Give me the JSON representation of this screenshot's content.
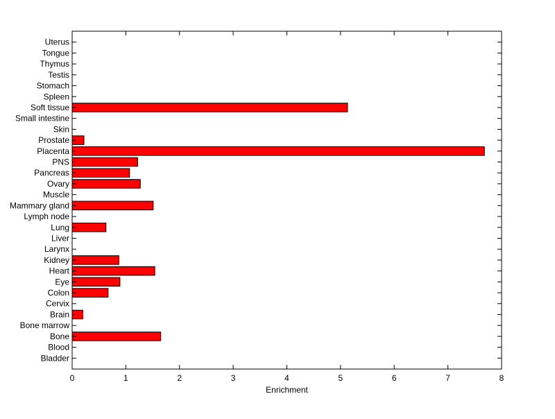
{
  "chart_data": {
    "type": "bar",
    "orientation": "horizontal",
    "title": "",
    "xlabel": "Enrichment",
    "ylabel": "",
    "xlim": [
      0,
      8
    ],
    "xticks": [
      0,
      1,
      2,
      3,
      4,
      5,
      6,
      7,
      8
    ],
    "grid": false,
    "legend": "none",
    "bar_color": "#ff0000",
    "edge_color": "#000000",
    "categories": [
      "Bladder",
      "Blood",
      "Bone",
      "Bone marrow",
      "Brain",
      "Cervix",
      "Colon",
      "Eye",
      "Heart",
      "Kidney",
      "Larynx",
      "Liver",
      "Lung",
      "Lymph node",
      "Mammary gland",
      "Muscle",
      "Ovary",
      "Pancreas",
      "PNS",
      "Placenta",
      "Prostate",
      "Skin",
      "Small intestine",
      "Soft tissue",
      "Spleen",
      "Stomach",
      "Testis",
      "Thymus",
      "Tongue",
      "Uterus"
    ],
    "values": [
      0,
      0,
      1.65,
      0,
      0.2,
      0,
      0.67,
      0.89,
      1.54,
      0.87,
      0,
      0,
      0.63,
      0,
      1.51,
      0,
      1.27,
      1.07,
      1.22,
      7.68,
      0.22,
      0,
      0,
      5.13,
      0,
      0,
      0,
      0,
      0,
      0
    ]
  }
}
